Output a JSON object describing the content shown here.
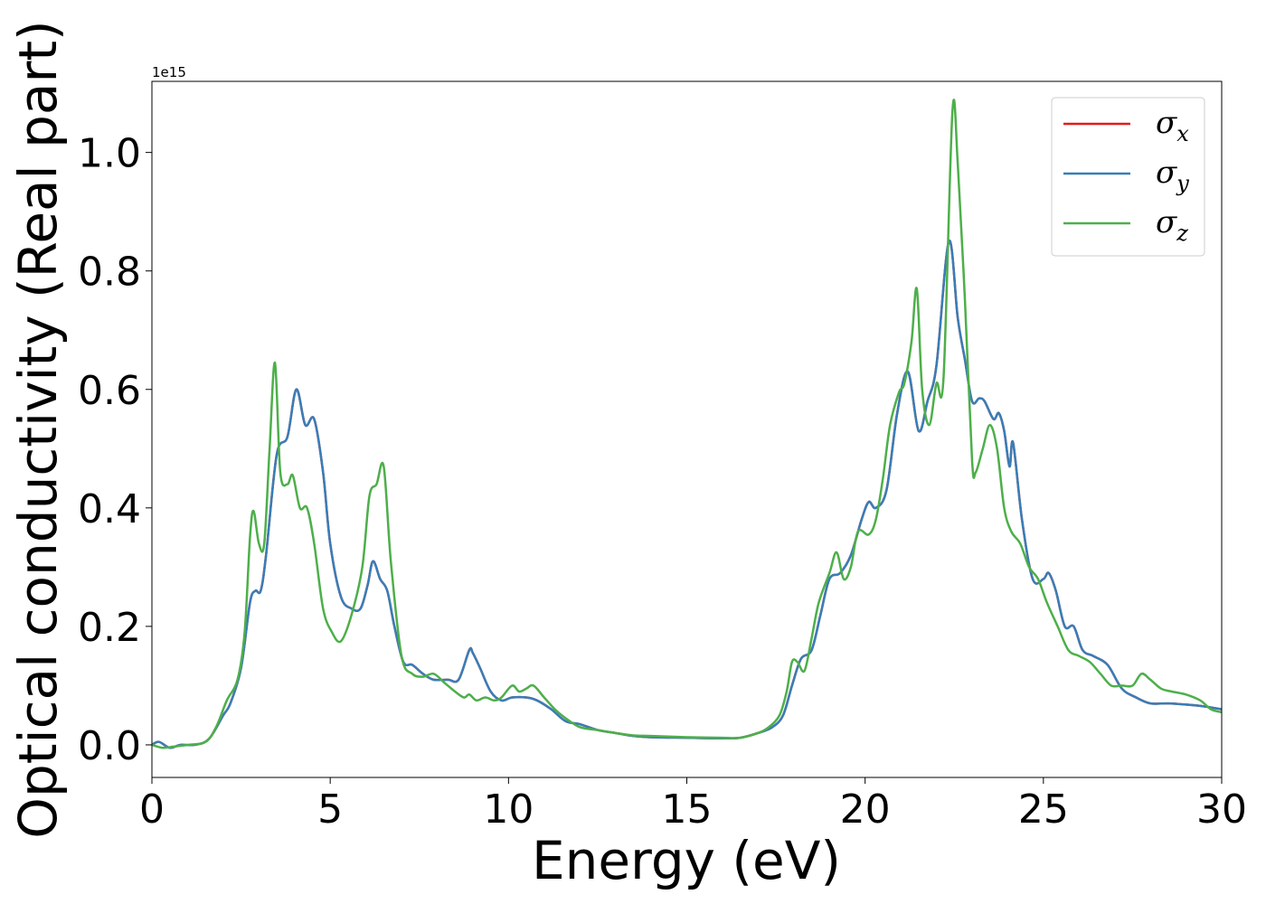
{
  "chart_data": {
    "type": "line",
    "xlabel": "Energy (eV)",
    "ylabel": "Optical conductivity (Real part)",
    "y_offset_text": "1e15",
    "xlim": [
      0,
      30
    ],
    "ylim": [
      -0.055,
      1.12
    ],
    "x_ticks": [
      0,
      5,
      10,
      15,
      20,
      25,
      30
    ],
    "x_tick_labels": [
      "0",
      "5",
      "10",
      "15",
      "20",
      "25",
      "30"
    ],
    "y_ticks": [
      0.0,
      0.2,
      0.4,
      0.6,
      0.8,
      1.0
    ],
    "y_tick_labels": [
      "0.0",
      "0.2",
      "0.4",
      "0.6",
      "0.8",
      "1.0"
    ],
    "grid": false,
    "legend_position": "top-right",
    "series": [
      {
        "name": "σx",
        "sym": "σ",
        "sub": "x",
        "color": "#e41a1c",
        "x": [
          0,
          0.2,
          0.5,
          0.8,
          1.2,
          1.6,
          2.0,
          2.2,
          2.5,
          2.75,
          2.9,
          3.05,
          3.2,
          3.5,
          3.8,
          4.05,
          4.3,
          4.55,
          4.8,
          5.0,
          5.3,
          5.6,
          5.85,
          6.05,
          6.2,
          6.4,
          6.6,
          6.8,
          7.05,
          7.3,
          7.6,
          7.9,
          8.3,
          8.6,
          8.9,
          9.0,
          9.2,
          9.5,
          9.8,
          10.1,
          10.5,
          10.8,
          11.2,
          11.6,
          12.0,
          12.5,
          13.0,
          13.5,
          14.0,
          15.0,
          16.0,
          16.5,
          17.0,
          17.4,
          17.7,
          17.95,
          18.2,
          18.5,
          18.75,
          19.0,
          19.3,
          19.6,
          19.9,
          20.1,
          20.3,
          20.6,
          20.9,
          21.2,
          21.5,
          21.75,
          22.0,
          22.35,
          22.6,
          22.8,
          23.0,
          23.2,
          23.35,
          23.6,
          23.75,
          23.9,
          24.05,
          24.15,
          24.4,
          24.7,
          25.0,
          25.15,
          25.35,
          25.6,
          25.85,
          26.1,
          26.4,
          26.8,
          27.2,
          27.6,
          28.0,
          28.5,
          29.0,
          29.5,
          30.0
        ],
        "values": [
          0,
          0.005,
          -0.005,
          0,
          0,
          0.01,
          0.05,
          0.07,
          0.13,
          0.24,
          0.26,
          0.26,
          0.32,
          0.49,
          0.52,
          0.6,
          0.54,
          0.55,
          0.46,
          0.34,
          0.25,
          0.23,
          0.23,
          0.27,
          0.31,
          0.28,
          0.26,
          0.2,
          0.14,
          0.135,
          0.12,
          0.11,
          0.11,
          0.11,
          0.16,
          0.155,
          0.13,
          0.09,
          0.075,
          0.08,
          0.08,
          0.075,
          0.06,
          0.04,
          0.035,
          0.025,
          0.02,
          0.015,
          0.013,
          0.012,
          0.011,
          0.012,
          0.02,
          0.03,
          0.05,
          0.1,
          0.145,
          0.16,
          0.22,
          0.28,
          0.29,
          0.32,
          0.38,
          0.41,
          0.4,
          0.43,
          0.56,
          0.63,
          0.53,
          0.58,
          0.64,
          0.85,
          0.72,
          0.65,
          0.58,
          0.585,
          0.58,
          0.55,
          0.56,
          0.53,
          0.47,
          0.51,
          0.38,
          0.28,
          0.28,
          0.29,
          0.26,
          0.2,
          0.2,
          0.16,
          0.15,
          0.135,
          0.095,
          0.08,
          0.07,
          0.07,
          0.068,
          0.065,
          0.06
        ]
      },
      {
        "name": "σy",
        "sym": "σ",
        "sub": "y",
        "color": "#377eb8",
        "x": [
          0,
          0.2,
          0.5,
          0.8,
          1.2,
          1.6,
          2.0,
          2.2,
          2.5,
          2.75,
          2.9,
          3.05,
          3.2,
          3.5,
          3.8,
          4.05,
          4.3,
          4.55,
          4.8,
          5.0,
          5.3,
          5.6,
          5.85,
          6.05,
          6.2,
          6.4,
          6.6,
          6.8,
          7.05,
          7.3,
          7.6,
          7.9,
          8.3,
          8.6,
          8.9,
          9.0,
          9.2,
          9.5,
          9.8,
          10.1,
          10.5,
          10.8,
          11.2,
          11.6,
          12.0,
          12.5,
          13.0,
          13.5,
          14.0,
          15.0,
          16.0,
          16.5,
          17.0,
          17.4,
          17.7,
          17.95,
          18.2,
          18.5,
          18.75,
          19.0,
          19.3,
          19.6,
          19.9,
          20.1,
          20.3,
          20.6,
          20.9,
          21.2,
          21.5,
          21.75,
          22.0,
          22.35,
          22.6,
          22.8,
          23.0,
          23.2,
          23.35,
          23.6,
          23.75,
          23.9,
          24.05,
          24.15,
          24.4,
          24.7,
          25.0,
          25.15,
          25.35,
          25.6,
          25.85,
          26.1,
          26.4,
          26.8,
          27.2,
          27.6,
          28.0,
          28.5,
          29.0,
          29.5,
          30.0
        ],
        "values": [
          0,
          0.005,
          -0.005,
          0,
          0,
          0.01,
          0.05,
          0.07,
          0.13,
          0.24,
          0.26,
          0.26,
          0.32,
          0.49,
          0.52,
          0.6,
          0.54,
          0.55,
          0.46,
          0.34,
          0.25,
          0.23,
          0.23,
          0.27,
          0.31,
          0.28,
          0.26,
          0.2,
          0.14,
          0.135,
          0.12,
          0.11,
          0.11,
          0.11,
          0.16,
          0.155,
          0.13,
          0.09,
          0.075,
          0.08,
          0.08,
          0.075,
          0.06,
          0.04,
          0.035,
          0.025,
          0.02,
          0.015,
          0.013,
          0.012,
          0.011,
          0.012,
          0.02,
          0.03,
          0.05,
          0.1,
          0.145,
          0.16,
          0.22,
          0.28,
          0.29,
          0.32,
          0.38,
          0.41,
          0.4,
          0.43,
          0.56,
          0.63,
          0.53,
          0.58,
          0.64,
          0.85,
          0.72,
          0.65,
          0.58,
          0.585,
          0.58,
          0.55,
          0.56,
          0.53,
          0.47,
          0.51,
          0.38,
          0.28,
          0.28,
          0.29,
          0.26,
          0.2,
          0.2,
          0.16,
          0.15,
          0.135,
          0.095,
          0.08,
          0.07,
          0.07,
          0.068,
          0.065,
          0.06
        ]
      },
      {
        "name": "σz",
        "sym": "σ",
        "sub": "z",
        "color": "#4daf4a",
        "x": [
          0,
          0.3,
          0.6,
          1.0,
          1.5,
          1.8,
          2.1,
          2.4,
          2.6,
          2.75,
          2.85,
          3.0,
          3.15,
          3.3,
          3.45,
          3.6,
          3.8,
          3.95,
          4.15,
          4.35,
          4.55,
          4.8,
          5.05,
          5.3,
          5.6,
          5.9,
          6.1,
          6.3,
          6.5,
          6.7,
          7.0,
          7.3,
          7.6,
          7.9,
          8.2,
          8.5,
          8.75,
          8.9,
          9.1,
          9.35,
          9.6,
          9.8,
          10.1,
          10.3,
          10.5,
          10.7,
          11.0,
          11.3,
          11.6,
          12.0,
          12.5,
          13.0,
          13.5,
          14.0,
          15.0,
          16.0,
          16.5,
          17.0,
          17.3,
          17.6,
          17.8,
          17.95,
          18.1,
          18.3,
          18.5,
          18.7,
          19.0,
          19.2,
          19.4,
          19.6,
          19.8,
          20.1,
          20.3,
          20.5,
          20.7,
          20.95,
          21.1,
          21.3,
          21.45,
          21.6,
          21.8,
          22.0,
          22.2,
          22.45,
          22.6,
          22.8,
          23.0,
          23.1,
          23.3,
          23.5,
          23.7,
          23.9,
          24.1,
          24.35,
          24.6,
          24.85,
          25.1,
          25.4,
          25.7,
          26.0,
          26.3,
          26.6,
          26.9,
          27.2,
          27.5,
          27.75,
          28.0,
          28.3,
          28.6,
          29.0,
          29.4,
          29.7,
          30.0
        ],
        "values": [
          0,
          -0.005,
          -0.003,
          0,
          0.005,
          0.03,
          0.075,
          0.11,
          0.19,
          0.35,
          0.395,
          0.34,
          0.34,
          0.5,
          0.645,
          0.46,
          0.44,
          0.455,
          0.4,
          0.4,
          0.34,
          0.23,
          0.19,
          0.175,
          0.22,
          0.3,
          0.42,
          0.44,
          0.47,
          0.31,
          0.15,
          0.12,
          0.115,
          0.12,
          0.105,
          0.09,
          0.08,
          0.085,
          0.075,
          0.08,
          0.075,
          0.08,
          0.1,
          0.09,
          0.095,
          0.1,
          0.08,
          0.06,
          0.045,
          0.03,
          0.025,
          0.02,
          0.016,
          0.015,
          0.013,
          0.012,
          0.012,
          0.02,
          0.03,
          0.05,
          0.09,
          0.14,
          0.14,
          0.125,
          0.18,
          0.24,
          0.29,
          0.325,
          0.28,
          0.3,
          0.36,
          0.355,
          0.38,
          0.45,
          0.54,
          0.595,
          0.61,
          0.68,
          0.77,
          0.6,
          0.54,
          0.61,
          0.62,
          1.07,
          0.98,
          0.75,
          0.48,
          0.46,
          0.5,
          0.54,
          0.5,
          0.4,
          0.36,
          0.34,
          0.3,
          0.28,
          0.24,
          0.2,
          0.16,
          0.15,
          0.14,
          0.12,
          0.1,
          0.1,
          0.1,
          0.12,
          0.11,
          0.095,
          0.09,
          0.085,
          0.075,
          0.06,
          0.055
        ]
      }
    ]
  }
}
